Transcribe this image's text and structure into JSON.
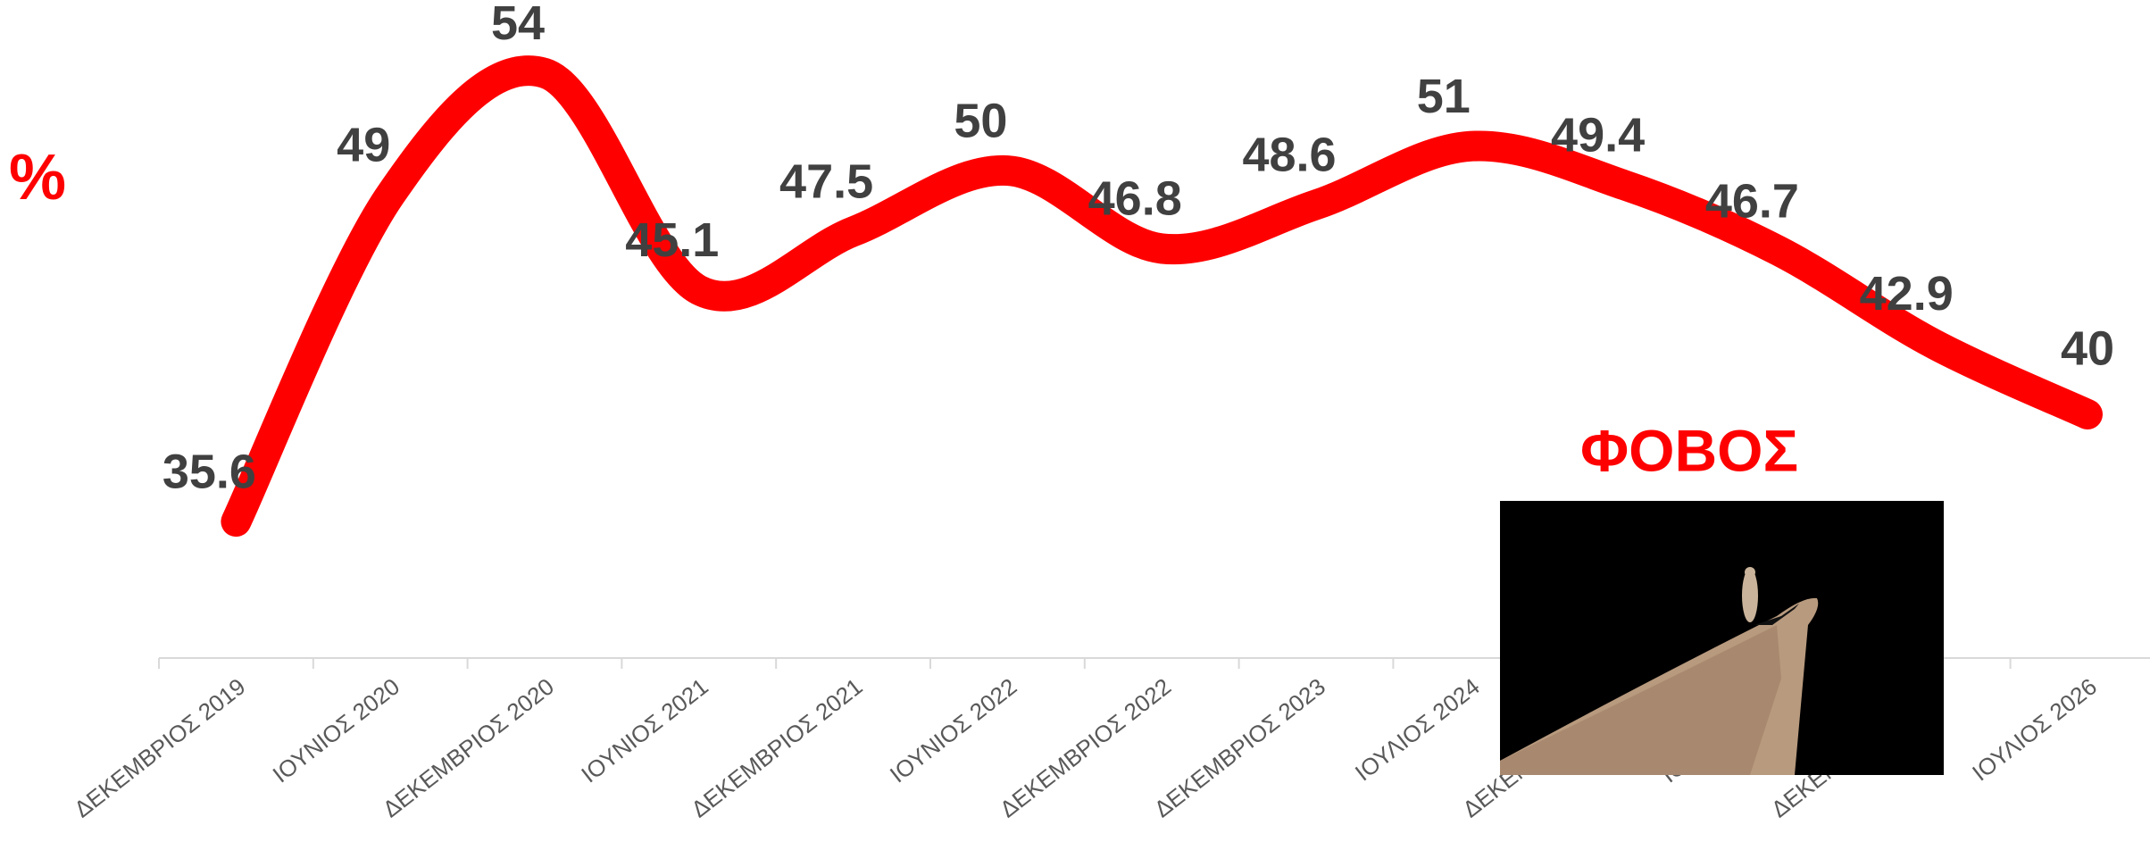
{
  "chart_data": {
    "type": "line",
    "title": "ΦΟΒΟΣ",
    "y_label": "%",
    "categories": [
      "ΔΕΚΕΜΒΡΙΟΣ 2019",
      "ΙΟΥΝΙΟΣ 2020",
      "ΔΕΚΕΜΒΡΙΟΣ 2020",
      "ΙΟΥΝΙΟΣ 2021",
      "ΔΕΚΕΜΒΡΙΟΣ 2021",
      "ΙΟΥΝΙΟΣ 2022",
      "ΔΕΚΕΜΒΡΙΟΣ 2022",
      "ΔΕΚΕΜΒΡΙΟΣ 2023",
      "ΙΟΥΛΙΟΣ 2024",
      "ΔΕΚΕΜΒΡΙΟΣ 2024",
      "ΙΟΥΝΙΟΣ 2025",
      "ΔΕΚΕΜΒΡΙΟΣ 2025",
      "ΙΟΥΛΙΟΣ 2026"
    ],
    "series": [
      {
        "name": "ΦΟΒΟΣ",
        "color": "#ff0000",
        "values": [
          35.6,
          49,
          54,
          45.1,
          47.5,
          50,
          46.8,
          48.6,
          51,
          49.4,
          46.7,
          42.9,
          40
        ]
      }
    ],
    "ylim": [
      30,
      57
    ],
    "smooth": true
  }
}
